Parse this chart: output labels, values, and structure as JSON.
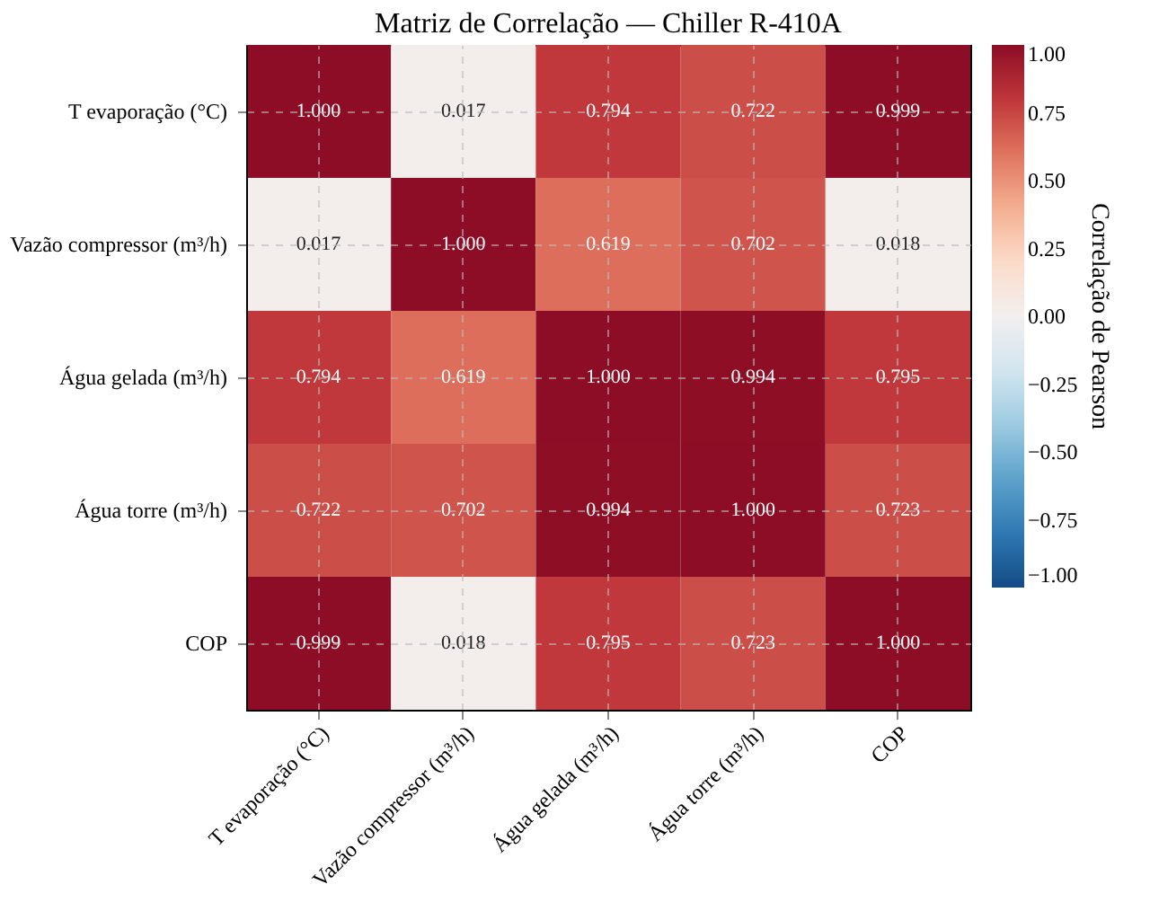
{
  "chart_data": {
    "type": "heatmap",
    "title": "Matriz de Correlação — Chiller R-410A",
    "clabel": "Correlação de Pearson",
    "categories": [
      "T evaporação (°C)",
      "Vazão compressor (m³/h)",
      "Água gelada (m³/h)",
      "Água torre (m³/h)",
      "COP"
    ],
    "y_categories": [
      "T evaporação (°C)",
      "Vazão compressor (m³/h)",
      "Água gelada (m³/h)",
      "Água torre (m³/h)",
      "COP"
    ],
    "cells": [
      [
        1.0,
        0.017,
        0.794,
        0.722,
        0.999
      ],
      [
        0.017,
        1.0,
        0.619,
        0.702,
        0.018
      ],
      [
        0.794,
        0.619,
        1.0,
        0.994,
        0.795
      ],
      [
        0.722,
        0.702,
        0.994,
        1.0,
        0.723
      ],
      [
        0.999,
        0.018,
        0.795,
        0.723,
        1.0
      ]
    ],
    "cell_labels": [
      [
        "1.000",
        "0.017",
        "0.794",
        "0.722",
        "0.999"
      ],
      [
        "0.017",
        "1.000",
        "0.619",
        "0.702",
        "0.018"
      ],
      [
        "0.794",
        "0.619",
        "1.000",
        "0.994",
        "0.795"
      ],
      [
        "0.722",
        "0.702",
        "0.994",
        "1.000",
        "0.723"
      ],
      [
        "0.999",
        "0.018",
        "0.795",
        "0.723",
        "1.000"
      ]
    ],
    "clim": [
      -1,
      1
    ],
    "cticks": [
      {
        "value": -1,
        "label": "−1.00"
      },
      {
        "value": -0.75,
        "label": "−0.75"
      },
      {
        "value": -0.5,
        "label": "−0.50"
      },
      {
        "value": -0.25,
        "label": "−0.25"
      },
      {
        "value": 0,
        "label": "0.00"
      },
      {
        "value": 0.25,
        "label": "0.25"
      },
      {
        "value": 0.5,
        "label": "0.50"
      },
      {
        "value": 0.75,
        "label": "0.75"
      },
      {
        "value": 1,
        "label": "1.00"
      }
    ],
    "grid": true
  }
}
